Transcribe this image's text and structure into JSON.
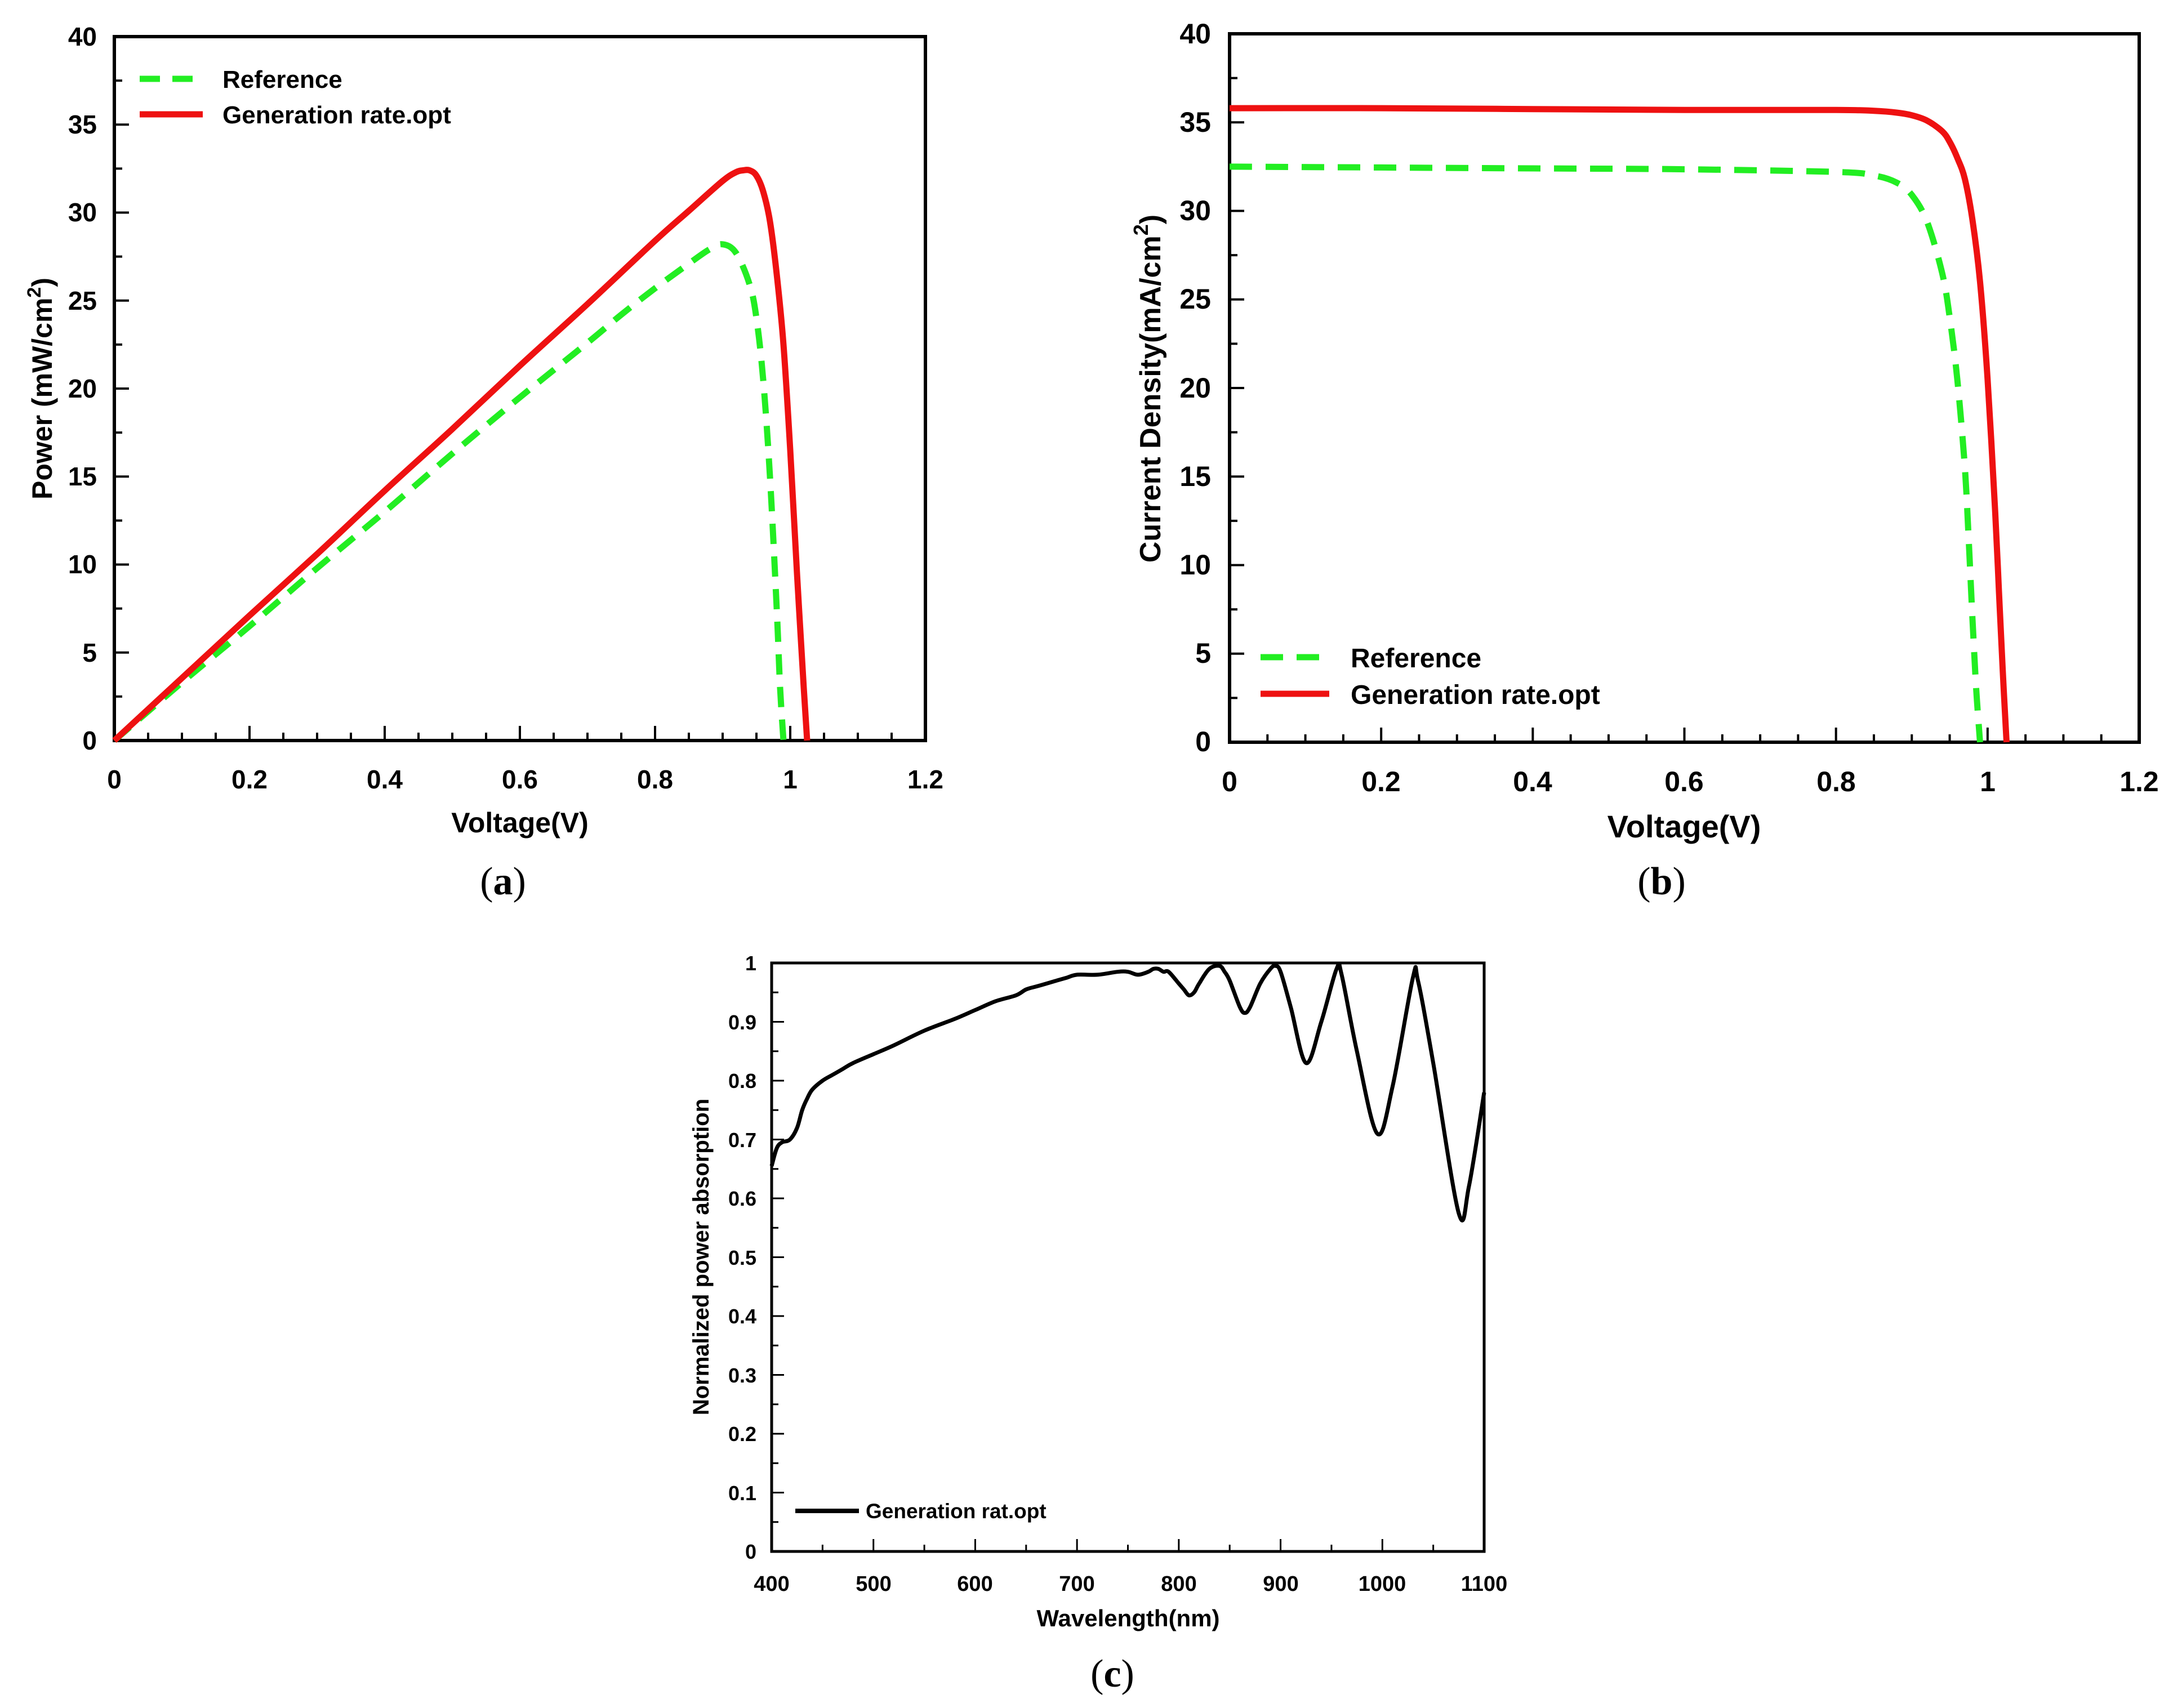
{
  "chart_data": [
    {
      "id": "a",
      "type": "line",
      "caption_letter": "a",
      "xlabel": "Voltage(V)",
      "ylabel_main": "Power (mW/cm",
      "ylabel_sup": "2",
      "ylabel_end": ")",
      "xlim": [
        0,
        1.2
      ],
      "ylim": [
        0,
        40
      ],
      "xticks": [
        0,
        0.2,
        0.4,
        0.6,
        0.8,
        1,
        1.2
      ],
      "xtick_labels": [
        "0",
        "0.2",
        "0.4",
        "0.6",
        "0.8",
        "1",
        "1.2"
      ],
      "yticks": [
        0,
        5,
        10,
        15,
        20,
        25,
        30,
        35,
        40
      ],
      "ytick_labels": [
        "0",
        "5",
        "10",
        "15",
        "20",
        "25",
        "30",
        "35",
        "40"
      ],
      "legend_position": "top-left",
      "series": [
        {
          "name": "Reference",
          "color": "#22ee22",
          "style": "dashed",
          "x": [
            0,
            0.1,
            0.2,
            0.3,
            0.4,
            0.5,
            0.6,
            0.7,
            0.75,
            0.8,
            0.85,
            0.88,
            0.9,
            0.92,
            0.94,
            0.95,
            0.96,
            0.97,
            0.98,
            0.985,
            0.99
          ],
          "y": [
            0,
            3.3,
            6.5,
            9.8,
            13.0,
            16.3,
            19.5,
            22.6,
            24.2,
            25.7,
            27.1,
            27.9,
            28.2,
            27.7,
            25.9,
            24.0,
            20.5,
            15.0,
            7.5,
            3.0,
            0
          ]
        },
        {
          "name": "Generation rate.opt",
          "color": "#ee1111",
          "style": "solid",
          "x": [
            0,
            0.1,
            0.2,
            0.3,
            0.4,
            0.5,
            0.6,
            0.7,
            0.8,
            0.85,
            0.9,
            0.92,
            0.93,
            0.94,
            0.95,
            0.96,
            0.97,
            0.98,
            0.99,
            1.0,
            1.01,
            1.02,
            1.025
          ],
          "y": [
            0,
            3.55,
            7.1,
            10.6,
            14.2,
            17.7,
            21.3,
            24.8,
            28.4,
            30.1,
            31.8,
            32.3,
            32.4,
            32.4,
            32.1,
            31.2,
            29.5,
            26.5,
            22.5,
            16.5,
            9.5,
            3.0,
            0
          ]
        }
      ]
    },
    {
      "id": "b",
      "type": "line",
      "caption_letter": "b",
      "xlabel": "Voltage(V)",
      "ylabel_main": "Current Density(mA/cm",
      "ylabel_sup": "2",
      "ylabel_end": ")",
      "xlim": [
        0,
        1.2
      ],
      "ylim": [
        0,
        40
      ],
      "xticks": [
        0,
        0.2,
        0.4,
        0.6,
        0.8,
        1,
        1.2
      ],
      "xtick_labels": [
        "0",
        "0.2",
        "0.4",
        "0.6",
        "0.8",
        "1",
        "1.2"
      ],
      "yticks": [
        0,
        5,
        10,
        15,
        20,
        25,
        30,
        35,
        40
      ],
      "ytick_labels": [
        "0",
        "5",
        "10",
        "15",
        "20",
        "25",
        "30",
        "35",
        "40"
      ],
      "legend_position": "bottom-left",
      "series": [
        {
          "name": "Reference",
          "color": "#22ee22",
          "style": "dashed",
          "x": [
            0,
            0.2,
            0.4,
            0.6,
            0.8,
            0.85,
            0.88,
            0.9,
            0.92,
            0.94,
            0.95,
            0.96,
            0.97,
            0.975,
            0.98,
            0.985,
            0.99
          ],
          "y": [
            32.5,
            32.45,
            32.4,
            32.35,
            32.2,
            32.0,
            31.6,
            30.9,
            29.4,
            26.5,
            24.0,
            20.5,
            15.5,
            11.5,
            7.0,
            3.0,
            0
          ]
        },
        {
          "name": "Generation rate.opt",
          "color": "#ee1111",
          "style": "solid",
          "x": [
            0,
            0.2,
            0.4,
            0.6,
            0.8,
            0.85,
            0.88,
            0.9,
            0.92,
            0.94,
            0.95,
            0.96,
            0.97,
            0.98,
            0.99,
            1.0,
            1.01,
            1.015,
            1.02,
            1.025
          ],
          "y": [
            35.8,
            35.8,
            35.75,
            35.7,
            35.7,
            35.65,
            35.55,
            35.4,
            35.1,
            34.5,
            33.9,
            33.0,
            31.8,
            29.5,
            26.0,
            20.5,
            13.0,
            8.5,
            4.0,
            0
          ]
        }
      ]
    },
    {
      "id": "c",
      "type": "line",
      "caption_letter": "c",
      "xlabel": "Wavelength(nm)",
      "ylabel_main": "Normalized power absorption",
      "ylabel_sup": "",
      "ylabel_end": "",
      "xlim": [
        400,
        1100
      ],
      "ylim": [
        0,
        1
      ],
      "xticks": [
        400,
        500,
        600,
        700,
        800,
        900,
        1000,
        1100
      ],
      "xtick_labels": [
        "400",
        "500",
        "600",
        "700",
        "800",
        "900",
        "1000",
        "1100"
      ],
      "yticks": [
        0,
        0.1,
        0.2,
        0.3,
        0.4,
        0.5,
        0.6,
        0.7,
        0.8,
        0.9,
        1
      ],
      "ytick_labels": [
        "0",
        "0.1",
        "0.2",
        "0.3",
        "0.4",
        "0.5",
        "0.6",
        "0.7",
        "0.8",
        "0.9",
        "1"
      ],
      "legend_position": "bottom-left",
      "series": [
        {
          "name": "Generation rat.opt",
          "color": "#000000",
          "style": "solid",
          "x": [
            400,
            405,
            410,
            418,
            425,
            430,
            435,
            440,
            450,
            460,
            470,
            480,
            500,
            520,
            550,
            580,
            600,
            620,
            640,
            650,
            660,
            670,
            680,
            690,
            700,
            720,
            740,
            750,
            760,
            770,
            775,
            780,
            785,
            790,
            800,
            805,
            810,
            815,
            820,
            830,
            840,
            845,
            850,
            860,
            865,
            870,
            880,
            890,
            895,
            900,
            910,
            925,
            940,
            955,
            960,
            975,
            995,
            1010,
            1030,
            1035,
            1050,
            1075,
            1085,
            1100
          ],
          "y": [
            0.655,
            0.685,
            0.695,
            0.7,
            0.72,
            0.75,
            0.77,
            0.785,
            0.8,
            0.81,
            0.82,
            0.83,
            0.845,
            0.86,
            0.885,
            0.905,
            0.92,
            0.935,
            0.945,
            0.955,
            0.96,
            0.965,
            0.97,
            0.975,
            0.98,
            0.98,
            0.985,
            0.985,
            0.98,
            0.985,
            0.99,
            0.99,
            0.985,
            0.985,
            0.965,
            0.955,
            0.945,
            0.95,
            0.965,
            0.99,
            0.995,
            0.985,
            0.97,
            0.925,
            0.915,
            0.925,
            0.965,
            0.99,
            0.995,
            0.985,
            0.925,
            0.83,
            0.9,
            0.99,
            0.98,
            0.85,
            0.71,
            0.79,
            0.975,
            0.97,
            0.83,
            0.575,
            0.62,
            0.78
          ]
        }
      ]
    }
  ]
}
